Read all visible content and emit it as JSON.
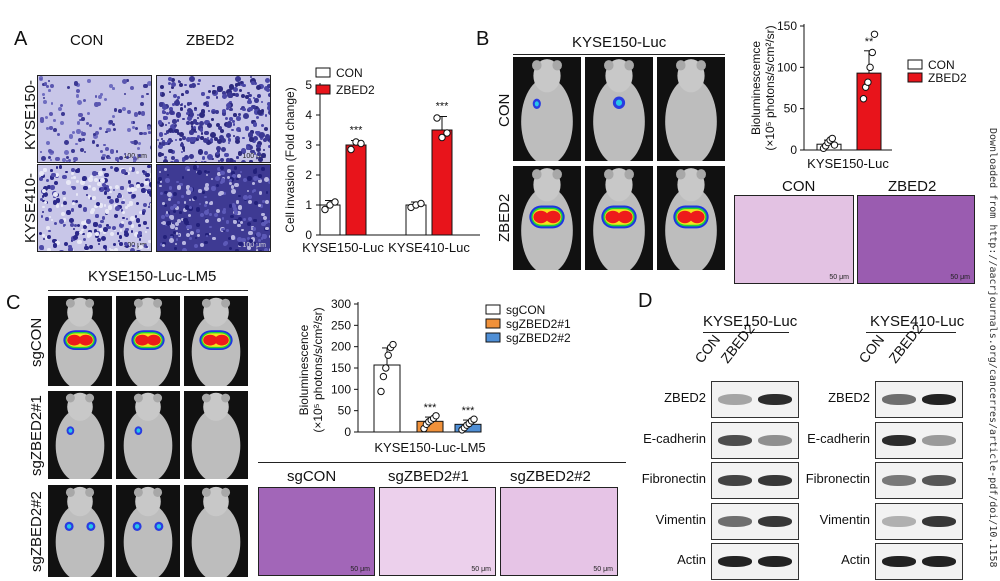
{
  "sidebar_text": "Downloaded from http://aacrjournals.org/cancerres/article-pdf/doi/10.1158",
  "panelA": {
    "letter": "A",
    "col_labels": [
      "CON",
      "ZBED2"
    ],
    "row_labels": [
      "KYSE150-Luc",
      "KYSE410-Luc"
    ],
    "scale": "100 μm",
    "chart": {
      "ylabel": "Cell invasion (Fold change)",
      "legend": [
        "CON",
        "ZBED2"
      ],
      "ticks": [
        "0",
        "1",
        "2",
        "3",
        "4",
        "5"
      ],
      "groups": [
        "KYSE150-Luc",
        "KYSE410-Luc"
      ],
      "sig": [
        "***",
        "***"
      ]
    }
  },
  "panelB": {
    "letter": "B",
    "title": "KYSE150-Luc",
    "row_labels": [
      "CON",
      "ZBED2"
    ],
    "chart": {
      "ylabel1": "Bioluminescemce",
      "ylabel2": "(×10⁵ photons/s/cm²/sr)",
      "ticks": [
        "0",
        "50",
        "100",
        "150"
      ],
      "xlabel": "KYSE150-Luc",
      "legend": [
        "CON",
        "ZBED2"
      ],
      "sig": "**"
    },
    "histo_labels": [
      "CON",
      "ZBED2"
    ],
    "scale": "50 μm"
  },
  "panelC": {
    "letter": "C",
    "title": "KYSE150-Luc-LM5",
    "row_labels": [
      "sgCON",
      "sgZBED2#1",
      "sgZBED2#2"
    ],
    "chart": {
      "ylabel1": "Bioluminescence",
      "ylabel2": "(×10⁵ photons/s/cm²/sr)",
      "ticks": [
        "0",
        "50",
        "100",
        "150",
        "200",
        "250",
        "300"
      ],
      "xlabel": "KYSE150-Luc-LM5",
      "legend": [
        "sgCON",
        "sgZBED2#1",
        "sgZBED2#2"
      ],
      "sig": [
        "***",
        "***"
      ]
    },
    "histo_labels": [
      "sgCON",
      "sgZBED2#1",
      "sgZBED2#2"
    ],
    "scale": "50 μm"
  },
  "panelD": {
    "letter": "D",
    "lines": [
      "KYSE150-Luc",
      "KYSE410-Luc"
    ],
    "lanes": [
      "CON",
      "ZBED2"
    ],
    "proteins": [
      "ZBED2",
      "E-cadherin",
      "Fibronectin",
      "Vimentin",
      "Actin"
    ]
  },
  "chart_data": [
    {
      "type": "bar",
      "ylabel": "Cell invasion (Fold change)",
      "categories": [
        "KYSE150-Luc",
        "KYSE410-Luc"
      ],
      "series": [
        {
          "name": "CON",
          "values": [
            1.0,
            1.0
          ],
          "err": [
            0.15,
            0.1
          ],
          "points": [
            [
              0.85,
              1.0,
              1.1
            ],
            [
              0.92,
              1.0,
              1.05
            ]
          ]
        },
        {
          "name": "ZBED2",
          "values": [
            3.0,
            3.5
          ],
          "err": [
            0.15,
            0.45
          ],
          "points": [
            [
              2.85,
              3.1,
              3.05
            ],
            [
              3.9,
              3.25,
              3.4
            ]
          ]
        }
      ],
      "ylim": [
        0,
        5
      ],
      "colors": [
        "#ffffff",
        "#e8141b"
      ]
    },
    {
      "type": "bar",
      "xlabel": "KYSE150-Luc",
      "categories": [
        "CON",
        "ZBED2"
      ],
      "values": [
        7,
        93
      ],
      "err": [
        5,
        27
      ],
      "points": [
        [
          2,
          5,
          9,
          12,
          14,
          6
        ],
        [
          62,
          76,
          82,
          100,
          118,
          140
        ]
      ],
      "ylim": [
        0,
        150
      ],
      "colors": [
        "#ffffff",
        "#e8141b"
      ]
    },
    {
      "type": "bar",
      "xlabel": "KYSE150-Luc-LM5",
      "categories": [
        "sgCON",
        "sgZBED2#1",
        "sgZBED2#2"
      ],
      "values": [
        157,
        25,
        18
      ],
      "err": [
        40,
        10,
        10
      ],
      "points": [
        [
          95,
          130,
          150,
          180,
          198,
          205
        ],
        [
          8,
          18,
          24,
          28,
          32,
          38
        ],
        [
          5,
          10,
          16,
          20,
          26,
          30
        ]
      ],
      "ylim": [
        0,
        300
      ],
      "colors": [
        "#ffffff",
        "#f0913a",
        "#4f8fd6"
      ]
    }
  ]
}
